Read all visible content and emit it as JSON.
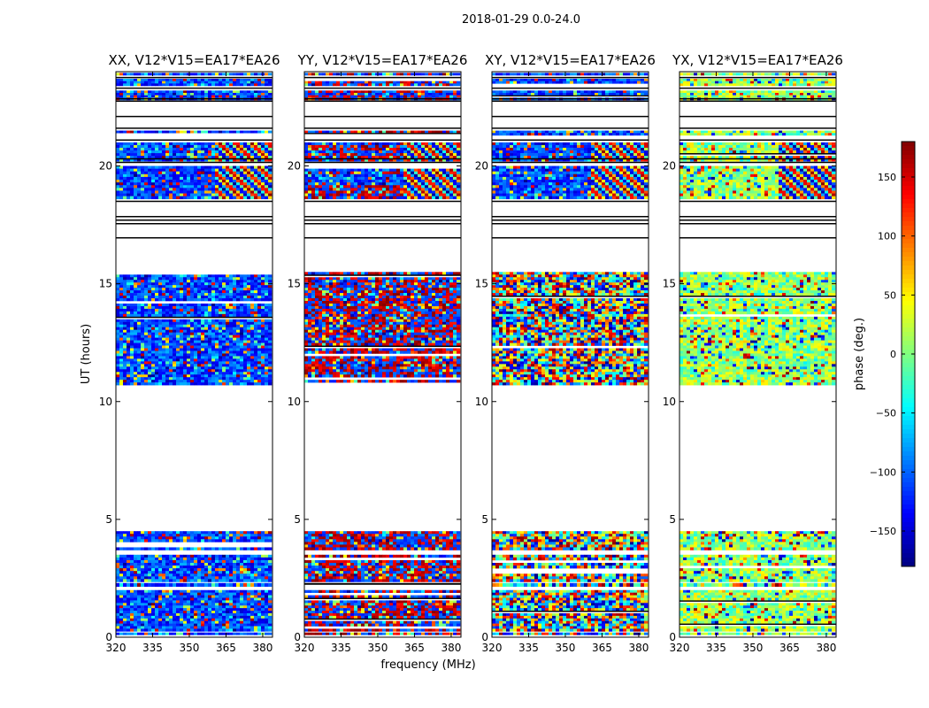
{
  "figure": {
    "suptitle": "2018-01-29 0.0-24.0",
    "xlabel": "frequency (MHz)",
    "ylabel": "UT (hours)"
  },
  "chart_data": {
    "type": "heatmap",
    "x_ticks": [
      "320",
      "335",
      "350",
      "365",
      "380"
    ],
    "x_tick_values": [
      320,
      335,
      350,
      365,
      380
    ],
    "xlim": [
      320,
      384
    ],
    "y_ticks": [
      "0",
      "5",
      "10",
      "15",
      "20"
    ],
    "y_tick_values": [
      0,
      5,
      10,
      15,
      20
    ],
    "ylim": [
      0,
      24
    ],
    "panels": [
      {
        "title": "XX, V12*V15=EA17*EA26",
        "bias": "blue",
        "bias_upper": "blue"
      },
      {
        "title": "YY, V12*V15=EA17*EA26",
        "bias": "red",
        "bias_upper": "redblue"
      },
      {
        "title": "XY, V12*V15=EA17*EA26",
        "bias": "none",
        "bias_upper": "blue"
      },
      {
        "title": "YX, V12*V15=EA17*EA26",
        "bias": "green",
        "bias_upper": "green"
      }
    ],
    "data_segments_ut": [
      [
        0.1,
        0.2
      ],
      [
        0.25,
        2.0
      ],
      [
        2.15,
        2.3
      ],
      [
        2.35,
        3.5
      ],
      [
        3.7,
        4.5
      ],
      [
        10.7,
        15.5
      ],
      [
        18.6,
        20.0
      ],
      [
        20.2,
        21.0
      ],
      [
        21.3,
        21.5
      ],
      [
        22.8,
        23.2
      ],
      [
        23.4,
        23.7
      ],
      [
        23.85,
        23.95
      ]
    ],
    "gap_lines_ut": [
      16.95,
      17.55,
      17.7,
      17.85,
      18.5,
      20.15,
      20.3,
      21.1,
      21.6,
      22.1,
      22.75,
      22.85,
      23.3,
      23.75
    ],
    "colorbar": {
      "label": "phase (deg.)",
      "ticks": [
        "150",
        "100",
        "50",
        "0",
        "−50",
        "−100",
        "−150"
      ],
      "tick_values": [
        150,
        100,
        50,
        0,
        -50,
        -100,
        -150
      ],
      "range": [
        -180,
        180
      ],
      "colormap": "jet"
    }
  }
}
